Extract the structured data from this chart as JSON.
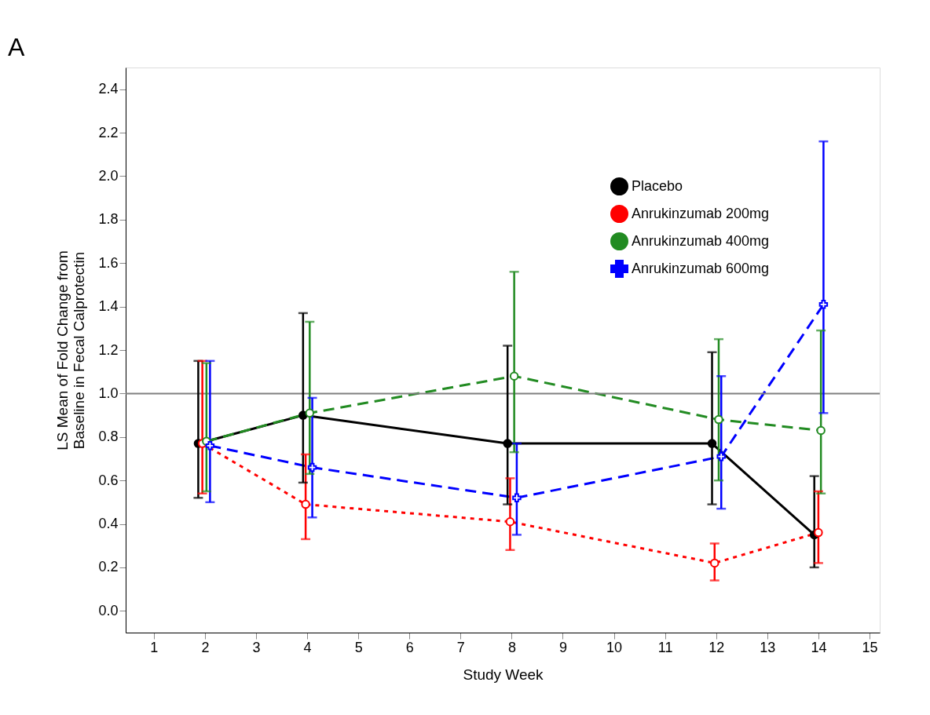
{
  "chart_data": {
    "type": "line",
    "xlabel": "Study Week",
    "ylabel": "LS Mean of Fold Change from\nBaseline in Fecal Calprotectin",
    "annotations": [
      "A"
    ],
    "xlim": [
      0.45,
      15.2
    ],
    "xticks": [
      1,
      2,
      3,
      4,
      5,
      6,
      7,
      8,
      9,
      10,
      11,
      12,
      13,
      14,
      15
    ],
    "ylim": [
      -0.1,
      2.5
    ],
    "yticks": [
      {
        "value": 0,
        "label": "0.0"
      },
      0.2,
      0.4,
      0.6,
      0.8,
      {
        "value": 1,
        "label": "1.0"
      },
      1.2,
      1.4,
      1.6,
      1.8,
      {
        "value": 2,
        "label": "2.0"
      },
      2.2,
      2.4
    ],
    "grid": false,
    "legend": "top right",
    "ref_lines": [
      {
        "axis": "y",
        "value": 1,
        "color": "#808080",
        "line_style": "solid"
      }
    ],
    "series": [
      {
        "name": "Placebo",
        "color": "#000000",
        "marker": "circle",
        "line_style": "solid",
        "x": [
          1.87,
          3.92,
          7.92,
          11.92,
          13.92
        ],
        "values": [
          0.77,
          0.9,
          0.77,
          0.77,
          0.35
        ],
        "errors": [
          [
            0.52,
            1.15
          ],
          [
            0.59,
            1.37
          ],
          [
            0.49,
            1.22
          ],
          [
            0.49,
            1.19
          ],
          [
            0.2,
            0.62
          ]
        ]
      },
      {
        "name": "Anrukinzumab 200mg",
        "color": "#ff0000",
        "marker": "circle",
        "line_style": "dotted",
        "x": [
          1.95,
          3.97,
          7.97,
          11.97,
          14.0
        ],
        "values": [
          0.77,
          0.49,
          0.41,
          0.22,
          0.36
        ],
        "errors": [
          [
            0.54,
            1.15
          ],
          [
            0.33,
            0.72
          ],
          [
            0.28,
            0.61
          ],
          [
            0.14,
            0.31
          ],
          [
            0.22,
            0.55
          ]
        ]
      },
      {
        "name": "Anrukinzumab 400mg",
        "color": "#228b22",
        "marker": "circle",
        "line_style": "dashed",
        "x": [
          2.03,
          4.05,
          8.05,
          12.05,
          14.05
        ],
        "values": [
          0.78,
          0.91,
          1.08,
          0.88,
          0.83
        ],
        "errors": [
          [
            0.55,
            1.14
          ],
          [
            0.63,
            1.33
          ],
          [
            0.73,
            1.56
          ],
          [
            0.6,
            1.25
          ],
          [
            0.54,
            1.29
          ]
        ]
      },
      {
        "name": "Anrukinzumab 600mg",
        "color": "#0000ff",
        "marker": "cross",
        "line_style": "dashed",
        "x": [
          2.1,
          4.1,
          8.1,
          12.1,
          14.1
        ],
        "values": [
          0.76,
          0.66,
          0.52,
          0.71,
          1.41
        ],
        "errors": [
          [
            0.5,
            1.15
          ],
          [
            0.43,
            0.98
          ],
          [
            0.35,
            0.77
          ],
          [
            0.47,
            1.08
          ],
          [
            0.91,
            2.16
          ]
        ]
      }
    ]
  }
}
